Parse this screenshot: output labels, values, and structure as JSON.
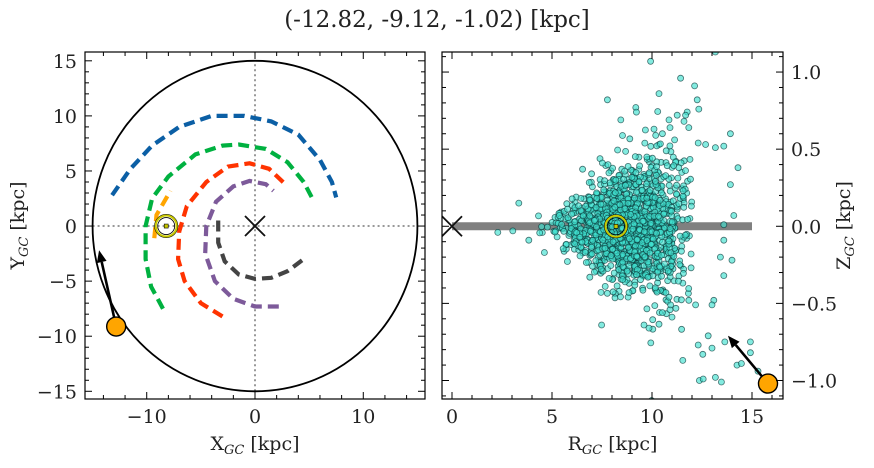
{
  "title": "(-12.82, -9.12, -1.02) [kpc]",
  "chart_data": [
    {
      "type": "line",
      "panel": "left",
      "xlabel": {
        "main": "X",
        "sub": "GC",
        "unit": "[kpc]"
      },
      "ylabel": {
        "main": "Y",
        "sub": "GC",
        "unit": "[kpc]"
      },
      "xlim": [
        -15.7,
        15.7
      ],
      "ylim": [
        -15.7,
        15.8
      ],
      "xticks": [
        -10,
        0,
        10
      ],
      "xtick_labels": [
        "−10",
        "0",
        "10"
      ],
      "yticks": [
        -15,
        -10,
        -5,
        0,
        5,
        10,
        15
      ],
      "ytick_labels": [
        "−15",
        "−10",
        "−5",
        "0",
        "5",
        "10",
        "15"
      ],
      "grid": false,
      "boundary_circle_radius": 15,
      "crosshair_lines": {
        "x": 0,
        "y": 0,
        "style": "dotted"
      },
      "galactic_center": {
        "x": 0,
        "y": 0,
        "marker": "x"
      },
      "sun": {
        "x": -8.2,
        "y": 0,
        "marker": "sun-symbol",
        "color": "#c8c800"
      },
      "target": {
        "x": -12.82,
        "y": -9.12,
        "color": "#ffa500"
      },
      "arrow": {
        "from": [
          -12.82,
          -9.12
        ],
        "to": [
          -14.4,
          -2.2
        ]
      },
      "spiral_arms": [
        {
          "color": "#0b5fa5",
          "points": [
            [
              -13.2,
              2.8
            ],
            [
              -11.5,
              5.2
            ],
            [
              -9.5,
              7.3
            ],
            [
              -7,
              9
            ],
            [
              -4,
              10
            ],
            [
              -1,
              10
            ],
            [
              1.5,
              9.5
            ],
            [
              4,
              8.3
            ],
            [
              6,
              6
            ],
            [
              7.1,
              4
            ],
            [
              7.5,
              2.6
            ]
          ]
        },
        {
          "color": "#00b140",
          "points": [
            [
              -8.5,
              -7.5
            ],
            [
              -9.6,
              -5.5
            ],
            [
              -10.1,
              -3
            ],
            [
              -10.1,
              0
            ],
            [
              -9.5,
              2.5
            ],
            [
              -8,
              4.5
            ],
            [
              -5.5,
              6.5
            ],
            [
              -3,
              7.3
            ],
            [
              -1.5,
              7.4
            ],
            [
              1,
              7
            ],
            [
              3,
              5.8
            ],
            [
              4.5,
              4
            ],
            [
              5.3,
              2.5
            ]
          ]
        },
        {
          "color": "#ffa500",
          "points": [
            [
              -9.3,
              -1.1
            ],
            [
              -9.1,
              1
            ],
            [
              -7.8,
              3.2
            ]
          ]
        },
        {
          "color": "#ff3300",
          "points": [
            [
              -3,
              -8.2
            ],
            [
              -5,
              -7
            ],
            [
              -6.5,
              -5
            ],
            [
              -7.1,
              -3
            ],
            [
              -7,
              -0.5
            ],
            [
              -6.3,
              1.8
            ],
            [
              -4.5,
              4
            ],
            [
              -2.5,
              5.4
            ],
            [
              -0.5,
              5.7
            ],
            [
              1.3,
              5.2
            ],
            [
              2.8,
              3.8
            ]
          ]
        },
        {
          "color": "#7d5a9a",
          "points": [
            [
              2.2,
              -7.3
            ],
            [
              0,
              -7.3
            ],
            [
              -2,
              -6.6
            ],
            [
              -3.7,
              -5
            ],
            [
              -4.6,
              -2.5
            ],
            [
              -4.5,
              0
            ],
            [
              -3.6,
              2.2
            ],
            [
              -2,
              3.6
            ],
            [
              -0.5,
              4.1
            ],
            [
              1,
              3.8
            ],
            [
              1.7,
              3.2
            ]
          ]
        },
        {
          "color": "#444444",
          "points": [
            [
              -3.4,
              0.5
            ],
            [
              -3.4,
              -1.5
            ],
            [
              -2.8,
              -3.2
            ],
            [
              -1.5,
              -4.4
            ],
            [
              0,
              -4.8
            ],
            [
              1.5,
              -4.7
            ],
            [
              3,
              -4.1
            ],
            [
              4.5,
              -3
            ]
          ]
        }
      ]
    },
    {
      "type": "scatter",
      "panel": "right",
      "xlabel": {
        "main": "R",
        "sub": "GC",
        "unit": "[kpc]"
      },
      "ylabel": {
        "main": "Z",
        "sub": "GC",
        "unit": "[kpc]"
      },
      "xlim": [
        -0.5,
        16.55
      ],
      "ylim": [
        -1.12,
        1.13
      ],
      "xticks": [
        0,
        5,
        10,
        15
      ],
      "xtick_labels": [
        "0",
        "5",
        "10",
        "15"
      ],
      "yticks": [
        -1.0,
        -0.5,
        0.0,
        0.5,
        1.0
      ],
      "ytick_labels": [
        "−1.0",
        "−0.5",
        "0.0",
        "0.5",
        "1.0"
      ],
      "ytick_side": "right",
      "grid": false,
      "point_color": "#40e0d0",
      "point_edge": "#0a3a3a",
      "disk_band": {
        "from": 0,
        "to": 15,
        "z": 0,
        "color": "#808080"
      },
      "galactic_center": {
        "x": 0,
        "y": 0,
        "marker": "x"
      },
      "sun": {
        "x": 8.2,
        "y": 0,
        "marker": "sun-symbol",
        "color": "#c8c800"
      },
      "target": {
        "x": 15.8,
        "y": -1.02,
        "color": "#ffa500"
      },
      "arrow": {
        "from": [
          15.8,
          -1.02
        ],
        "to": [
          13.8,
          -0.71
        ]
      },
      "cluster": {
        "r_range": [
          4.2,
          12
        ],
        "z_center": 0,
        "note_shape": "wedge widening with R"
      },
      "points": [
        [
          9.93,
          1.07
        ],
        [
          11.43,
          0.96
        ],
        [
          12.13,
          0.91
        ],
        [
          7.77,
          0.82
        ],
        [
          10.35,
          0.86
        ],
        [
          12.26,
          0.82
        ],
        [
          9.19,
          0.77
        ],
        [
          9.22,
          0.74
        ],
        [
          8.44,
          0.69
        ],
        [
          12.34,
          0.76
        ],
        [
          11.26,
          0.72
        ],
        [
          11.68,
          0.72
        ],
        [
          10.85,
          0.69
        ],
        [
          11.6,
          0.68
        ],
        [
          11.84,
          0.64
        ],
        [
          10.9,
          0.64
        ],
        [
          10.1,
          0.63
        ],
        [
          10.52,
          0.6
        ],
        [
          13.92,
          0.6
        ],
        [
          11.13,
          0.56
        ],
        [
          12.31,
          0.54
        ],
        [
          12.68,
          0.53
        ],
        [
          13.17,
          0.51
        ],
        [
          13.59,
          0.52
        ],
        [
          14.3,
          0.38
        ],
        [
          13.92,
          0.27
        ],
        [
          14.09,
          0.07
        ],
        [
          13.59,
          0.01
        ],
        [
          13.59,
          -0.09
        ],
        [
          14.0,
          -0.22
        ],
        [
          13.42,
          -0.2
        ],
        [
          13.59,
          -0.32
        ],
        [
          13.09,
          -0.48
        ],
        [
          13.0,
          -0.51
        ],
        [
          12.18,
          -0.51
        ],
        [
          11.84,
          -0.48
        ],
        [
          10.93,
          -0.51
        ],
        [
          10.52,
          -0.56
        ],
        [
          10.85,
          -0.46
        ],
        [
          9.6,
          -0.64
        ],
        [
          9.85,
          -0.66
        ],
        [
          7.48,
          -0.64
        ],
        [
          8.85,
          -0.43
        ],
        [
          7.66,
          -0.39
        ],
        [
          12.81,
          -0.71
        ],
        [
          12.31,
          -0.77
        ],
        [
          13.0,
          -0.79
        ],
        [
          12.54,
          -0.83
        ],
        [
          13.64,
          -0.75
        ],
        [
          14.92,
          -0.75
        ],
        [
          14.92,
          -0.82
        ],
        [
          11.54,
          -0.87
        ],
        [
          14.25,
          -0.9
        ],
        [
          14.47,
          -0.89
        ],
        [
          15.3,
          -0.94
        ],
        [
          12.37,
          -1.0
        ],
        [
          12.56,
          -0.99
        ],
        [
          13.17,
          -0.98
        ],
        [
          13.47,
          -1.01
        ],
        [
          3.34,
          0.15
        ],
        [
          2.29,
          -0.04
        ],
        [
          3.04,
          -0.03
        ],
        [
          3.84,
          -0.09
        ],
        [
          4.62,
          -0.17
        ],
        [
          6.53,
          0.37
        ],
        [
          6.98,
          0.34
        ],
        [
          7.52,
          0.41
        ],
        [
          7.8,
          0.4
        ],
        [
          9.98,
          -1.13
        ],
        [
          13.17,
          1.13
        ]
      ]
    }
  ]
}
